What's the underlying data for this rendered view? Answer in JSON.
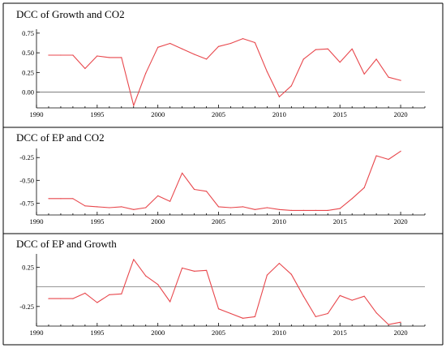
{
  "chart_data": [
    {
      "type": "line",
      "title": "DCC of Growth and CO2",
      "x": [
        1991,
        1992,
        1993,
        1994,
        1995,
        1996,
        1997,
        1998,
        1999,
        2000,
        2001,
        2002,
        2003,
        2004,
        2005,
        2006,
        2007,
        2008,
        2009,
        2010,
        2011,
        2012,
        2013,
        2014,
        2015,
        2016,
        2017,
        2018,
        2019,
        2020
      ],
      "values": [
        0.47,
        0.47,
        0.47,
        0.3,
        0.46,
        0.44,
        0.44,
        -0.17,
        0.24,
        0.57,
        0.62,
        0.55,
        0.48,
        0.42,
        0.58,
        0.62,
        0.68,
        0.63,
        0.26,
        -0.06,
        0.08,
        0.42,
        0.54,
        0.55,
        0.38,
        0.55,
        0.23,
        0.42,
        0.19,
        0.15
      ],
      "xlim": [
        1990,
        2022
      ],
      "ylim": [
        -0.2,
        0.8
      ],
      "xticks": [
        "1990",
        "1995",
        "2000",
        "2005",
        "2010",
        "2015",
        "2020"
      ],
      "yticks": [
        "0.00",
        "0.25",
        "0.50",
        "0.75"
      ],
      "reference_line": 0,
      "color": "#e8474c"
    },
    {
      "type": "line",
      "title": "DCC of EP and CO2",
      "x": [
        1991,
        1992,
        1993,
        1994,
        1995,
        1996,
        1997,
        1998,
        1999,
        2000,
        2001,
        2002,
        2003,
        2004,
        2005,
        2006,
        2007,
        2008,
        2009,
        2010,
        2011,
        2012,
        2013,
        2014,
        2015,
        2016,
        2017,
        2018,
        2019,
        2020
      ],
      "values": [
        -0.7,
        -0.7,
        -0.7,
        -0.78,
        -0.79,
        -0.8,
        -0.79,
        -0.82,
        -0.8,
        -0.67,
        -0.73,
        -0.42,
        -0.6,
        -0.62,
        -0.79,
        -0.8,
        -0.79,
        -0.82,
        -0.8,
        -0.82,
        -0.83,
        -0.83,
        -0.83,
        -0.83,
        -0.81,
        -0.7,
        -0.58,
        -0.23,
        -0.27,
        -0.18
      ],
      "xlim": [
        1990,
        2022
      ],
      "ylim": [
        -0.88,
        -0.15
      ],
      "xticks": [
        "1990",
        "1995",
        "2000",
        "2005",
        "2010",
        "2015",
        "2020"
      ],
      "yticks": [
        "-0.75",
        "-0.50",
        "-0.25"
      ],
      "color": "#e8474c"
    },
    {
      "type": "line",
      "title": "DCC of EP and Growth",
      "x": [
        1991,
        1992,
        1993,
        1994,
        1995,
        1996,
        1997,
        1998,
        1999,
        2000,
        2001,
        2002,
        2003,
        2004,
        2005,
        2006,
        2007,
        2008,
        2009,
        2010,
        2011,
        2012,
        2013,
        2014,
        2015,
        2016,
        2017,
        2018,
        2019,
        2020
      ],
      "values": [
        -0.15,
        -0.15,
        -0.15,
        -0.08,
        -0.2,
        -0.1,
        -0.09,
        0.35,
        0.14,
        0.03,
        -0.19,
        0.24,
        0.2,
        0.21,
        -0.28,
        -0.34,
        -0.4,
        -0.38,
        0.15,
        0.3,
        0.16,
        -0.12,
        -0.38,
        -0.34,
        -0.11,
        -0.17,
        -0.12,
        -0.33,
        -0.48,
        -0.45
      ],
      "xlim": [
        1990,
        2022
      ],
      "ylim": [
        -0.5,
        0.42
      ],
      "xticks": [
        "1990",
        "1995",
        "2000",
        "2005",
        "2010",
        "2015",
        "2020"
      ],
      "yticks": [
        "-0.25",
        "0.25"
      ],
      "reference_line": 0,
      "color": "#e8474c"
    }
  ]
}
